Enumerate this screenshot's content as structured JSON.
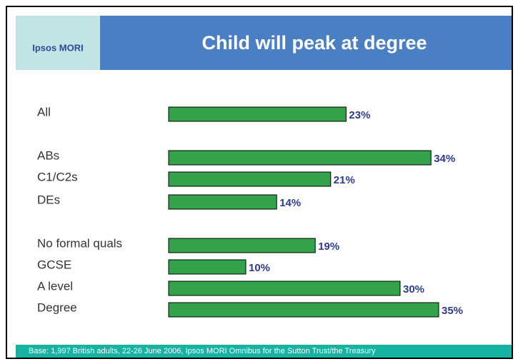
{
  "brand": "Ipsos MORI",
  "footer": "Base: 1,997 British adults, 22-26 June 2006, Ipsos MORI Omnibus for the Sutton Trust/the Treasury",
  "chart_data": {
    "type": "barh",
    "title": "Child will peak at degree",
    "categories": [
      "All",
      "ABs",
      "C1/C2s",
      "DEs",
      "No formal quals",
      "GCSE",
      "A level",
      "Degree"
    ],
    "values": [
      23,
      34,
      21,
      14,
      19,
      10,
      30,
      35
    ],
    "value_labels": [
      "23%",
      "34%",
      "21%",
      "14%",
      "19%",
      "10%",
      "30%",
      "35%"
    ],
    "color": "#33a24a"
  }
}
